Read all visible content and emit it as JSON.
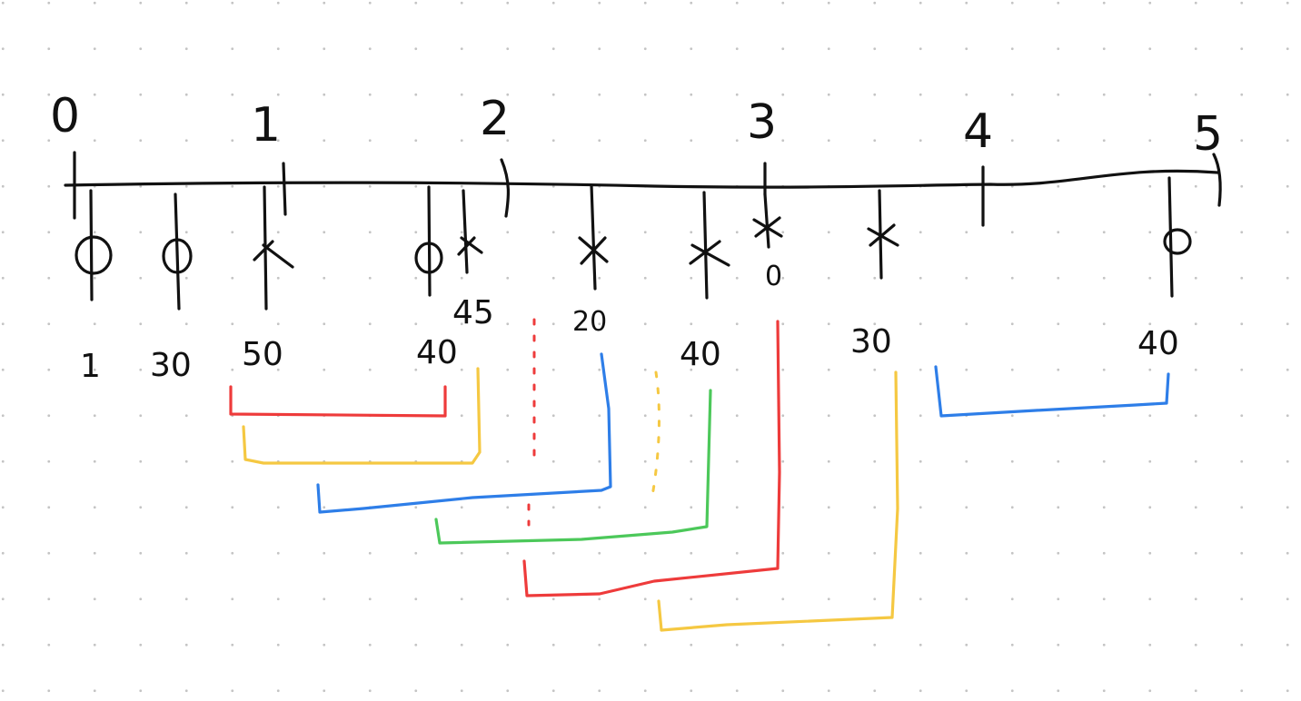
{
  "colors": {
    "ink": "#111111",
    "red": "#ee3b3b",
    "yellow": "#f5c842",
    "blue": "#2e7ee8",
    "green": "#4cc85a",
    "grid_dot": "#c4c4c4"
  },
  "timeline": {
    "labels": [
      "0",
      "1",
      "2",
      "3",
      "4",
      "5"
    ]
  },
  "events": [
    {
      "mark": "circle",
      "weight": "1"
    },
    {
      "mark": "circle",
      "weight": "30"
    },
    {
      "mark": "cross",
      "weight": "50"
    },
    {
      "mark": "circle",
      "weight": "40"
    },
    {
      "mark": "cross",
      "weight": "45"
    },
    {
      "mark": "cross",
      "weight": "20"
    },
    {
      "mark": "cross",
      "weight": "40"
    },
    {
      "mark": "cross",
      "weight": "0"
    },
    {
      "mark": "cross",
      "weight": "30"
    },
    {
      "mark": "circle",
      "weight": "40"
    }
  ],
  "brackets": [
    {
      "color": "red",
      "style": "solid"
    },
    {
      "color": "yellow",
      "style": "solid"
    },
    {
      "color": "red",
      "style": "dotted"
    },
    {
      "color": "blue",
      "style": "solid"
    },
    {
      "color": "yellow",
      "style": "dotted"
    },
    {
      "color": "green",
      "style": "solid"
    },
    {
      "color": "red",
      "style": "solid"
    },
    {
      "color": "yellow",
      "style": "solid"
    },
    {
      "color": "blue",
      "style": "solid"
    }
  ]
}
